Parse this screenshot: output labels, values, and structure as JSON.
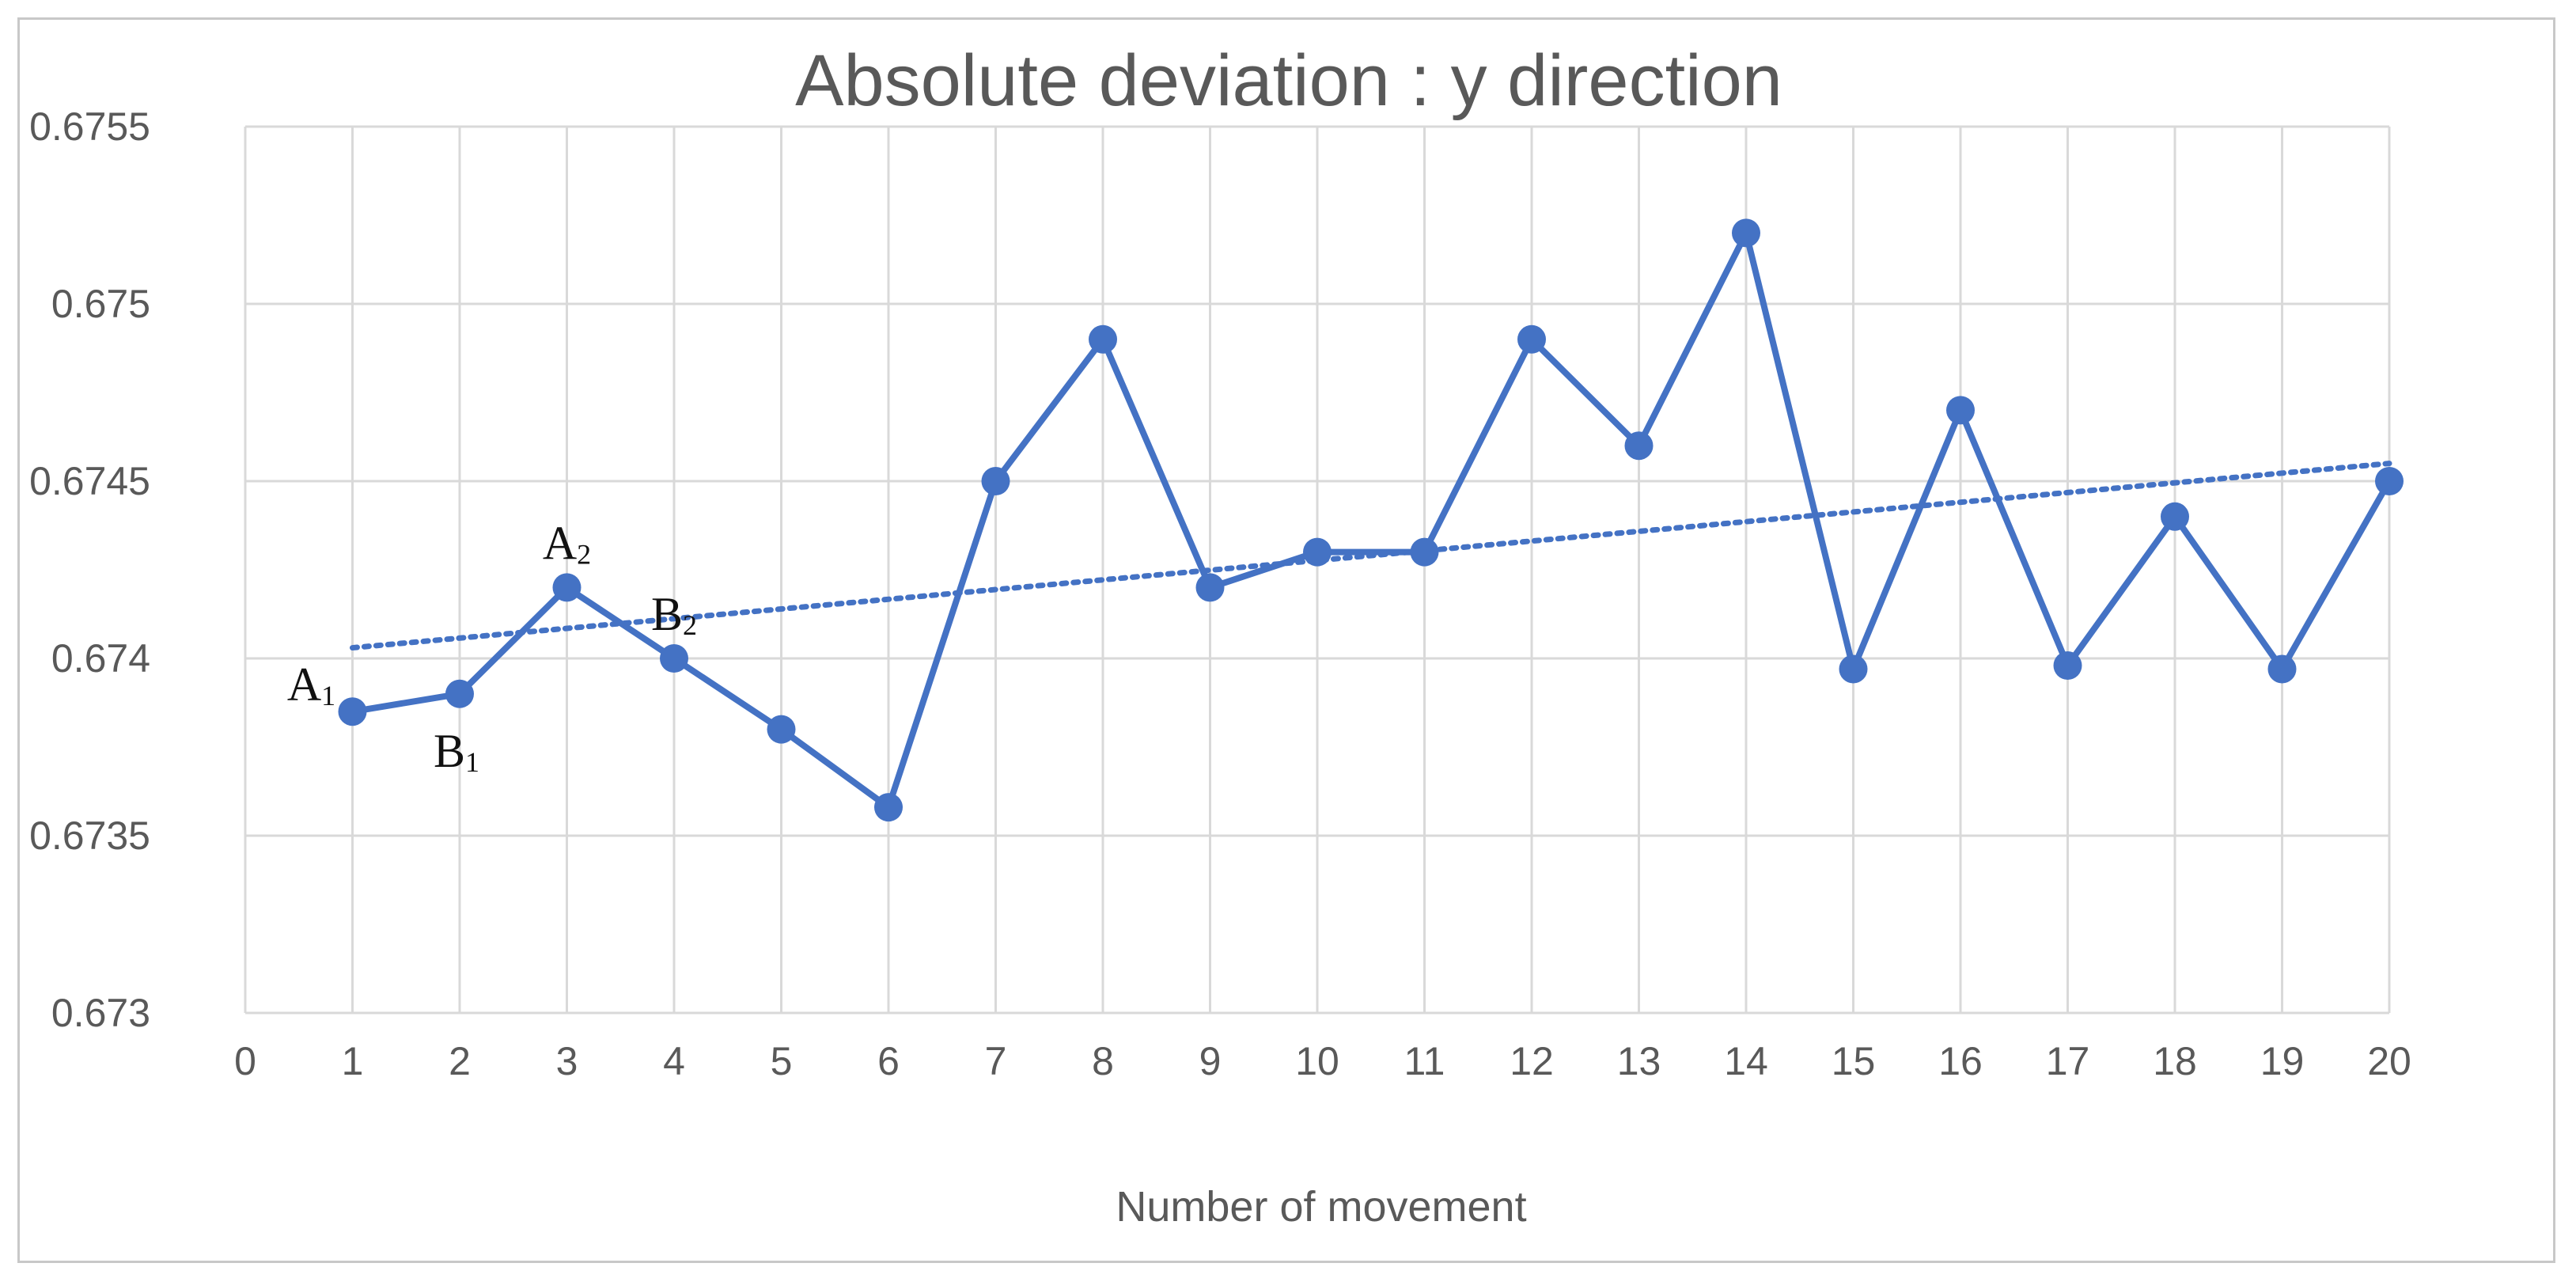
{
  "chart_data": {
    "type": "line",
    "title": "Absolute deviation : y direction",
    "xlabel": "Number of movement",
    "ylabel": "",
    "xlim": [
      0,
      20
    ],
    "ylim": [
      0.673,
      0.6755
    ],
    "x_ticks": [
      "0",
      "1",
      "2",
      "3",
      "4",
      "5",
      "6",
      "7",
      "8",
      "9",
      "10",
      "11",
      "12",
      "13",
      "14",
      "15",
      "16",
      "17",
      "18",
      "19",
      "20"
    ],
    "y_ticks": [
      "0.673",
      "0.6735",
      "0.674",
      "0.6745",
      "0.675",
      "0.6755"
    ],
    "grid": true,
    "series": [
      {
        "x": [
          1,
          2,
          3,
          4,
          5,
          6,
          7,
          8,
          9,
          10,
          11,
          12,
          13,
          14,
          15,
          16,
          17,
          18,
          19,
          20
        ],
        "values": [
          0.67385,
          0.6739,
          0.6742,
          0.674,
          0.6738,
          0.67358,
          0.6745,
          0.6749,
          0.6742,
          0.6743,
          0.6743,
          0.6749,
          0.6746,
          0.6752,
          0.67397,
          0.6747,
          0.67398,
          0.6744,
          0.67397,
          0.6745
        ],
        "color": "#4472c4",
        "style": "solid line with circle markers"
      }
    ],
    "trendline": {
      "type": "linear",
      "style": "dotted",
      "color": "#4472c4",
      "x": [
        1,
        20
      ],
      "values": [
        0.67403,
        0.67455
      ]
    },
    "annotations": [
      {
        "label": "A",
        "sub": "1",
        "x": 1,
        "y": 0.67385,
        "placement": "left-above"
      },
      {
        "label": "B",
        "sub": "1",
        "x": 2,
        "y": 0.6739,
        "placement": "below"
      },
      {
        "label": "A",
        "sub": "2",
        "x": 3,
        "y": 0.6742,
        "placement": "above"
      },
      {
        "label": "B",
        "sub": "2",
        "x": 4,
        "y": 0.674,
        "placement": "above"
      }
    ]
  }
}
